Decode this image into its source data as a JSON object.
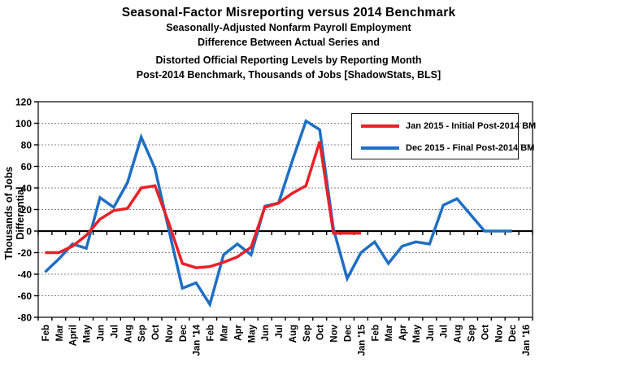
{
  "title_lines": [
    "Seasonal-Factor Misreporting versus 2014 Benchmark",
    "Seasonally-Adjusted Nonfarm Payroll Employment",
    "Difference Between Actual Series and",
    "Distorted Official Reporting Levels by Reporting Month",
    "Post-2014 Benchmark, Thousands of Jobs [ShadowStats, BLS]"
  ],
  "y_axis": {
    "label": "Thousands of Jobs Differential",
    "tick_labels": [
      "120",
      "100",
      "80",
      "60",
      "40",
      "20",
      "0",
      "-20",
      "-40",
      "-60",
      "-80"
    ]
  },
  "legend": {
    "items": [
      {
        "label": "Jan 2015 - Initial Post-2014 BM",
        "color": "#ea2127"
      },
      {
        "label": "Dec 2015 - Final Post-2014 BM",
        "color": "#1e6fc4"
      }
    ]
  },
  "colors": {
    "red_series": "#ea2127",
    "blue_series": "#1e6fc4",
    "gridline": "#888888",
    "axis": "#000000",
    "background": "#ffffff"
  },
  "chart_data": {
    "type": "line",
    "title": "Seasonal-Factor Misreporting versus 2014 Benchmark",
    "ylabel": "Thousands of Jobs Differential",
    "ylim": [
      -80,
      120
    ],
    "ytick_step": 20,
    "grid": "horizontal-dashed",
    "legend_position": "upper-right-box",
    "categories": [
      "Feb",
      "Mar",
      "April",
      "May",
      "Jun",
      "Jul",
      "Aug",
      "Sep",
      "Oct",
      "Nov",
      "Dec",
      "Jan '14",
      "Feb",
      "Mar",
      "Apr",
      "May",
      "Jun",
      "Jul",
      "Aug",
      "Sep",
      "Oct",
      "Nov",
      "Dec",
      "Jan '15",
      "Feb",
      "Mar",
      "Apr",
      "May",
      "Jun",
      "Jul",
      "Aug",
      "Sep",
      "Oct",
      "Nov",
      "Dec",
      "Jan '16"
    ],
    "series": [
      {
        "name": "Jan 2015 - Initial Post-2014 BM",
        "color": "#ea2127",
        "values": [
          -20,
          -20,
          -14,
          -4,
          11,
          19,
          21,
          40,
          42,
          8,
          -30,
          -34,
          -33,
          -29,
          -24,
          -15,
          22,
          26,
          35,
          42,
          83,
          -2,
          -2,
          -2
        ]
      },
      {
        "name": "Dec 2015 - Final Post-2014 BM",
        "color": "#1e6fc4",
        "values": [
          -38,
          -26,
          -12,
          -16,
          31,
          22,
          45,
          87,
          58,
          2,
          -53,
          -48,
          -68,
          -22,
          -12,
          -22,
          23,
          26,
          65,
          102,
          94,
          2,
          -44,
          -20,
          -10,
          -30,
          -14,
          -10,
          -12,
          24,
          30,
          15,
          0,
          0,
          0
        ]
      }
    ]
  }
}
